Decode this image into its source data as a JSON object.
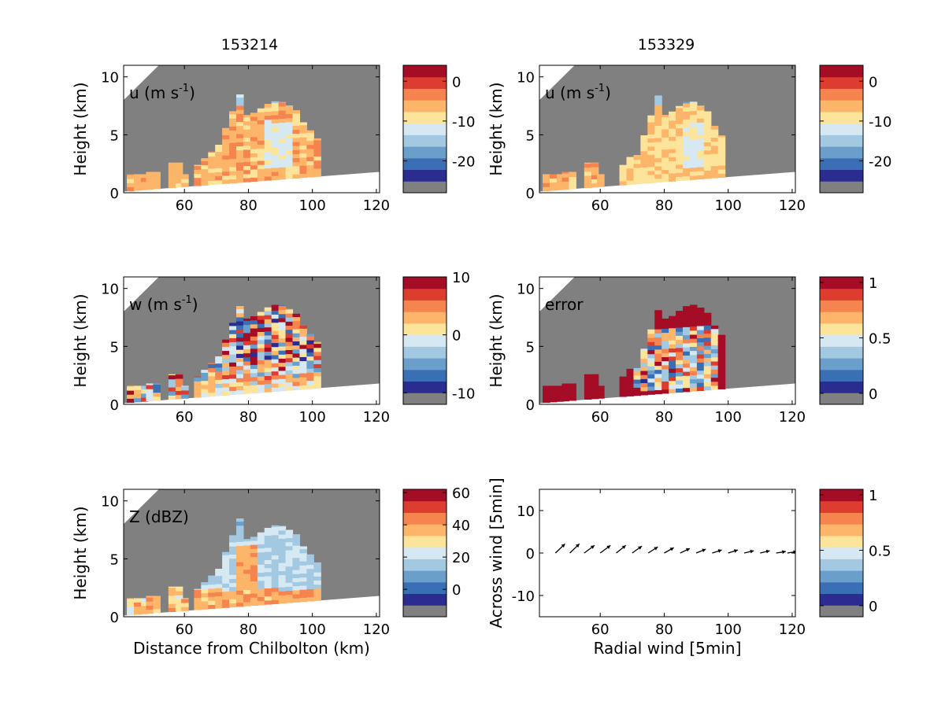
{
  "figure": {
    "column_titles": [
      "153214",
      "153329"
    ]
  },
  "colors": {
    "no_data": "#808080",
    "palette": [
      "#808080",
      "#2a2d8f",
      "#3a6fb5",
      "#6b9fcb",
      "#a2c8e2",
      "#d6e9f3",
      "#fde49b",
      "#fdb56a",
      "#f6844f",
      "#dc3d2e",
      "#a50d26"
    ]
  },
  "chart_data": [
    {
      "id": "u-153214",
      "type": "heatmap",
      "column": 0,
      "row": 0,
      "label_main": "u (m s",
      "label_sup": "-1",
      "label_end": ")",
      "xlabel": "",
      "ylabel": "Height (km)",
      "xlim": [
        41,
        121
      ],
      "ylim": [
        0,
        11
      ],
      "xticks": [
        "60",
        "80",
        "100",
        "120"
      ],
      "yticks": [
        "0",
        "5",
        "10"
      ],
      "cbar_ticks": [
        "0",
        "-10",
        "-20"
      ],
      "cbar_range": [
        -28,
        4
      ],
      "cbar_tick_values": [
        0,
        -10,
        -20
      ],
      "field": "u",
      "storm": {
        "x_start": 63,
        "x_end": 101,
        "top_km": 8.8,
        "base_mean": -13,
        "core_mean": -7
      }
    },
    {
      "id": "u-153329",
      "type": "heatmap",
      "column": 1,
      "row": 0,
      "label_main": "u (m s",
      "label_sup": "-1",
      "label_end": ")",
      "xlabel": "",
      "ylabel": "Height (km)",
      "xlim": [
        41,
        121
      ],
      "ylim": [
        0,
        11
      ],
      "xticks": [
        "60",
        "80",
        "100",
        "120"
      ],
      "yticks": [
        "0",
        "5",
        "10"
      ],
      "cbar_ticks": [
        "0",
        "-10",
        "-20"
      ],
      "cbar_range": [
        -28,
        4
      ],
      "cbar_tick_values": [
        0,
        -10,
        -20
      ],
      "field": "u",
      "storm": {
        "x_start": 66,
        "x_end": 98,
        "top_km": 8.8,
        "base_mean": -13,
        "core_mean": -9
      }
    },
    {
      "id": "w-153214",
      "type": "heatmap",
      "column": 0,
      "row": 1,
      "label_main": "w (m s",
      "label_sup": "-1",
      "label_end": ")",
      "xlabel": "",
      "ylabel": "Height (km)",
      "xlim": [
        41,
        121
      ],
      "ylim": [
        0,
        11
      ],
      "xticks": [
        "60",
        "80",
        "100",
        "120"
      ],
      "yticks": [
        "0",
        "5",
        "10"
      ],
      "cbar_ticks": [
        "10",
        "0",
        "-10"
      ],
      "cbar_range": [
        -12,
        10
      ],
      "cbar_tick_values": [
        10,
        0,
        -10
      ],
      "field": "w",
      "storm": {
        "x_start": 63,
        "x_end": 101,
        "top_km": 9.5,
        "base_mean": 0,
        "core_mean": 0
      }
    },
    {
      "id": "error-153329",
      "type": "heatmap",
      "column": 1,
      "row": 1,
      "label_main": "error",
      "label_sup": "",
      "label_end": "",
      "xlabel": "",
      "ylabel": "Height (km)",
      "xlim": [
        41,
        121
      ],
      "ylim": [
        0,
        11
      ],
      "xticks": [
        "60",
        "80",
        "100",
        "120"
      ],
      "yticks": [
        "0",
        "5",
        "10"
      ],
      "cbar_ticks": [
        "1",
        "0.5",
        "0"
      ],
      "cbar_range": [
        -0.1,
        1.05
      ],
      "cbar_tick_values": [
        1,
        0.5,
        0
      ],
      "field": "error",
      "storm": {
        "x_start": 66,
        "x_end": 99,
        "top_km": 9.5,
        "base_mean": 0.3,
        "core_mean": 0.6
      }
    },
    {
      "id": "z-153214",
      "type": "heatmap",
      "column": 0,
      "row": 2,
      "label_main": "Z (dBZ)",
      "label_sup": "",
      "label_end": "",
      "xlabel": "Distance from Chilbolton (km)",
      "ylabel": "Height (km)",
      "xlim": [
        41,
        121
      ],
      "ylim": [
        0,
        11
      ],
      "xticks": [
        "60",
        "80",
        "100",
        "120"
      ],
      "yticks": [
        "0",
        "5",
        "10"
      ],
      "cbar_ticks": [
        "60",
        "40",
        "20",
        "0"
      ],
      "cbar_range": [
        -17,
        62
      ],
      "cbar_tick_values": [
        60,
        40,
        20,
        0
      ],
      "field": "Z",
      "storm": {
        "x_start": 63,
        "x_end": 101,
        "top_km": 8.8,
        "base_mean": 12,
        "core_mean": 22
      }
    },
    {
      "id": "wind-vectors",
      "type": "quiver",
      "column": 1,
      "row": 2,
      "xlabel": "Radial wind [5min]",
      "ylabel": "Across wind [5min]",
      "xlim": [
        41,
        121
      ],
      "ylim": [
        -15,
        15
      ],
      "xticks": [
        "60",
        "80",
        "100",
        "120"
      ],
      "yticks": [
        "10",
        "0",
        "-10"
      ],
      "cbar_ticks": [
        "1",
        "0.5",
        "0"
      ],
      "cbar_range": [
        -0.1,
        1.05
      ],
      "cbar_tick_values": [
        1,
        0.5,
        0
      ],
      "arrows_x": [
        46,
        50.5,
        55,
        60,
        65,
        70,
        75,
        80,
        85,
        90,
        95,
        100,
        105,
        110,
        115,
        118.5
      ],
      "arrows_y": [
        0,
        0,
        0,
        0,
        0,
        0,
        0,
        0,
        0,
        0,
        0,
        0,
        0,
        0,
        0,
        0
      ],
      "arrows_u": [
        3,
        3,
        3.2,
        3.2,
        3,
        3,
        3,
        3,
        3,
        3,
        3,
        3,
        3,
        3,
        3,
        3
      ],
      "arrows_v": [
        1.2,
        1.2,
        1,
        1,
        1,
        0.9,
        0.8,
        0.7,
        0.6,
        0.5,
        0.4,
        0.4,
        0.3,
        0.3,
        0.2,
        0.2
      ]
    }
  ]
}
